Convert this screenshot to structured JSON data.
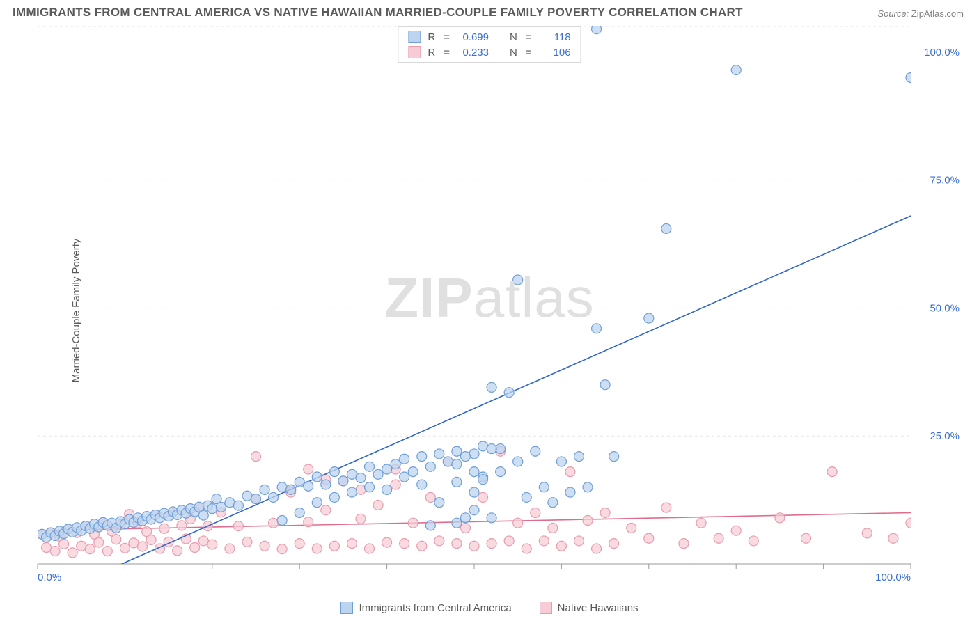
{
  "title": "IMMIGRANTS FROM CENTRAL AMERICA VS NATIVE HAWAIIAN MARRIED-COUPLE FAMILY POVERTY CORRELATION CHART",
  "source_label": "Source:",
  "source_value": "ZipAtlas.com",
  "ylabel": "Married-Couple Family Poverty",
  "watermark_a": "ZIP",
  "watermark_b": "atlas",
  "chart": {
    "type": "scatter",
    "xlim": [
      0,
      100
    ],
    "ylim": [
      0,
      105
    ],
    "x_ticks": [
      0,
      10,
      20,
      30,
      40,
      50,
      60,
      70,
      80,
      90,
      100
    ],
    "x_tick_labels": {
      "0": "0.0%",
      "100": "100.0%"
    },
    "y_gridlines": [
      0,
      25,
      50,
      75,
      105
    ],
    "y_tick_labels": {
      "25": "25.0%",
      "50": "50.0%",
      "75": "75.0%",
      "100": "100.0%"
    },
    "grid_color": "#e5e5e5",
    "axis_color": "#999999",
    "background_color": "#ffffff",
    "marker_radius": 7,
    "marker_stroke_width": 1.2,
    "line_width": 1.6,
    "series": [
      {
        "name": "Immigrants from Central America",
        "fill": "#bdd4ef",
        "stroke": "#6e9fd8",
        "line_color": "#2e66c9",
        "R": "0.699",
        "N": "118",
        "trend": {
          "x1": 7,
          "y1": -2,
          "x2": 100,
          "y2": 68
        },
        "points": [
          [
            0.5,
            5.8
          ],
          [
            1,
            5.2
          ],
          [
            1.5,
            6.1
          ],
          [
            2,
            5.5
          ],
          [
            2.5,
            6.4
          ],
          [
            3,
            5.9
          ],
          [
            3.5,
            6.8
          ],
          [
            4,
            6.2
          ],
          [
            4.5,
            7.1
          ],
          [
            5,
            6.5
          ],
          [
            5.5,
            7.4
          ],
          [
            6,
            6.9
          ],
          [
            6.5,
            7.8
          ],
          [
            7,
            7.2
          ],
          [
            7.5,
            8.1
          ],
          [
            8,
            7.5
          ],
          [
            8.5,
            8.0
          ],
          [
            9,
            7.0
          ],
          [
            9.5,
            8.3
          ],
          [
            10,
            7.8
          ],
          [
            10.5,
            8.7
          ],
          [
            11,
            8.1
          ],
          [
            11.5,
            9.0
          ],
          [
            12,
            8.4
          ],
          [
            12.5,
            9.3
          ],
          [
            13,
            8.7
          ],
          [
            13.5,
            9.6
          ],
          [
            14,
            9.0
          ],
          [
            14.5,
            9.9
          ],
          [
            15,
            9.3
          ],
          [
            15.5,
            10.2
          ],
          [
            16,
            9.6
          ],
          [
            16.5,
            10.5
          ],
          [
            17,
            9.9
          ],
          [
            17.5,
            10.8
          ],
          [
            18,
            10.2
          ],
          [
            18.5,
            11.1
          ],
          [
            19,
            9.5
          ],
          [
            19.5,
            11.4
          ],
          [
            20,
            10.8
          ],
          [
            20.5,
            12.7
          ],
          [
            21,
            11.1
          ],
          [
            22,
            12.0
          ],
          [
            23,
            11.4
          ],
          [
            24,
            13.3
          ],
          [
            25,
            12.7
          ],
          [
            26,
            14.5
          ],
          [
            27,
            13.0
          ],
          [
            28,
            15.0
          ],
          [
            28,
            8.5
          ],
          [
            29,
            14.5
          ],
          [
            30,
            16.0
          ],
          [
            30,
            10.0
          ],
          [
            31,
            15.2
          ],
          [
            32,
            17.0
          ],
          [
            32,
            12.0
          ],
          [
            33,
            15.5
          ],
          [
            34,
            18.0
          ],
          [
            34,
            13.0
          ],
          [
            35,
            16.2
          ],
          [
            36,
            17.5
          ],
          [
            36,
            14.0
          ],
          [
            37,
            16.8
          ],
          [
            38,
            19.0
          ],
          [
            38,
            15.0
          ],
          [
            39,
            17.5
          ],
          [
            40,
            18.5
          ],
          [
            40,
            14.5
          ],
          [
            41,
            19.5
          ],
          [
            42,
            17.0
          ],
          [
            42,
            20.5
          ],
          [
            43,
            18.0
          ],
          [
            44,
            15.5
          ],
          [
            44,
            21.0
          ],
          [
            45,
            19.0
          ],
          [
            46,
            21.5
          ],
          [
            46,
            12.0
          ],
          [
            47,
            20.0
          ],
          [
            48,
            22.0
          ],
          [
            48,
            16.0
          ],
          [
            49,
            9.0
          ],
          [
            50,
            21.5
          ],
          [
            50,
            14.0
          ],
          [
            51,
            23.0
          ],
          [
            51,
            17.0
          ],
          [
            52,
            34.5
          ],
          [
            53,
            22.5
          ],
          [
            53,
            18.0
          ],
          [
            54,
            33.5
          ],
          [
            55,
            55.5
          ],
          [
            55,
            20.0
          ],
          [
            56,
            13.0
          ],
          [
            57,
            22.0
          ],
          [
            58,
            15.0
          ],
          [
            59,
            12.0
          ],
          [
            60,
            20.0
          ],
          [
            61,
            14.0
          ],
          [
            62,
            21.0
          ],
          [
            63,
            15.0
          ],
          [
            64,
            46.0
          ],
          [
            65,
            35.0
          ],
          [
            66,
            21.0
          ],
          [
            58,
            104.5
          ],
          [
            61,
            104.5
          ],
          [
            64,
            104.5
          ],
          [
            70,
            48.0
          ],
          [
            72,
            65.5
          ],
          [
            80,
            96.5
          ],
          [
            100,
            95.0
          ],
          [
            45,
            7.5
          ],
          [
            48,
            8.0
          ],
          [
            50,
            10.5
          ],
          [
            52,
            9.0
          ],
          [
            48,
            19.5
          ],
          [
            50,
            18.0
          ],
          [
            52,
            22.5
          ],
          [
            49,
            21.0
          ],
          [
            51,
            16.5
          ]
        ]
      },
      {
        "name": "Native Hawaiians",
        "fill": "#f6cdd6",
        "stroke": "#e89bae",
        "line_color": "#e06d8c",
        "R": "0.233",
        "N": "106",
        "trend": {
          "x1": 0,
          "y1": 6.5,
          "x2": 100,
          "y2": 10.0
        },
        "points": [
          [
            0.5,
            5.8
          ],
          [
            1,
            3.2
          ],
          [
            1.5,
            6.1
          ],
          [
            2,
            2.5
          ],
          [
            2.5,
            5.4
          ],
          [
            3,
            3.9
          ],
          [
            3.5,
            6.8
          ],
          [
            4,
            2.2
          ],
          [
            4.5,
            6.1
          ],
          [
            5,
            3.5
          ],
          [
            5.5,
            7.4
          ],
          [
            6,
            2.9
          ],
          [
            6.5,
            5.8
          ],
          [
            7,
            4.2
          ],
          [
            7.5,
            8.1
          ],
          [
            8,
            2.5
          ],
          [
            8.5,
            6.4
          ],
          [
            9,
            4.8
          ],
          [
            9.5,
            7.7
          ],
          [
            10,
            3.1
          ],
          [
            10.5,
            9.7
          ],
          [
            11,
            4.1
          ],
          [
            11.5,
            8.0
          ],
          [
            12,
            3.4
          ],
          [
            12.5,
            6.3
          ],
          [
            13,
            4.7
          ],
          [
            13.5,
            9.6
          ],
          [
            14,
            3.0
          ],
          [
            14.5,
            6.9
          ],
          [
            15,
            4.3
          ],
          [
            15.5,
            10.2
          ],
          [
            16,
            2.6
          ],
          [
            16.5,
            7.5
          ],
          [
            17,
            4.9
          ],
          [
            17.5,
            8.8
          ],
          [
            18,
            3.2
          ],
          [
            18.5,
            11.1
          ],
          [
            19,
            4.5
          ],
          [
            19.5,
            7.4
          ],
          [
            20,
            3.8
          ],
          [
            21,
            10.1
          ],
          [
            22,
            3.0
          ],
          [
            23,
            7.4
          ],
          [
            24,
            4.3
          ],
          [
            25,
            12.7
          ],
          [
            25,
            21.0
          ],
          [
            26,
            3.5
          ],
          [
            27,
            8.0
          ],
          [
            28,
            2.9
          ],
          [
            29,
            14.5
          ],
          [
            30,
            4.0
          ],
          [
            31,
            8.2
          ],
          [
            31,
            18.5
          ],
          [
            32,
            3.0
          ],
          [
            33,
            10.5
          ],
          [
            34,
            3.5
          ],
          [
            35,
            16.2
          ],
          [
            36,
            4.0
          ],
          [
            37,
            8.8
          ],
          [
            38,
            3.0
          ],
          [
            39,
            11.5
          ],
          [
            40,
            4.2
          ],
          [
            41,
            18.5
          ],
          [
            42,
            4.0
          ],
          [
            43,
            8.0
          ],
          [
            44,
            3.5
          ],
          [
            45,
            13.0
          ],
          [
            46,
            4.5
          ],
          [
            47,
            20.0
          ],
          [
            48,
            4.0
          ],
          [
            49,
            7.0
          ],
          [
            50,
            3.5
          ],
          [
            51,
            13.0
          ],
          [
            52,
            4.0
          ],
          [
            53,
            22.0
          ],
          [
            54,
            4.5
          ],
          [
            55,
            8.0
          ],
          [
            56,
            3.0
          ],
          [
            57,
            10.0
          ],
          [
            58,
            4.5
          ],
          [
            59,
            7.0
          ],
          [
            60,
            3.5
          ],
          [
            61,
            18.0
          ],
          [
            62,
            4.5
          ],
          [
            63,
            8.5
          ],
          [
            64,
            3.0
          ],
          [
            65,
            10.0
          ],
          [
            66,
            4.0
          ],
          [
            68,
            7.0
          ],
          [
            70,
            5.0
          ],
          [
            72,
            11.0
          ],
          [
            74,
            4.0
          ],
          [
            76,
            8.0
          ],
          [
            78,
            5.0
          ],
          [
            80,
            6.5
          ],
          [
            82,
            4.5
          ],
          [
            85,
            9.0
          ],
          [
            88,
            5.0
          ],
          [
            91,
            18.0
          ],
          [
            95,
            6.0
          ],
          [
            98,
            5.0
          ],
          [
            100,
            8.0
          ],
          [
            29,
            14.0
          ],
          [
            33,
            16.5
          ],
          [
            37,
            14.5
          ],
          [
            41,
            15.5
          ]
        ]
      }
    ]
  },
  "legend_top": {
    "r_label": "R",
    "n_label": "N",
    "eq": "="
  }
}
